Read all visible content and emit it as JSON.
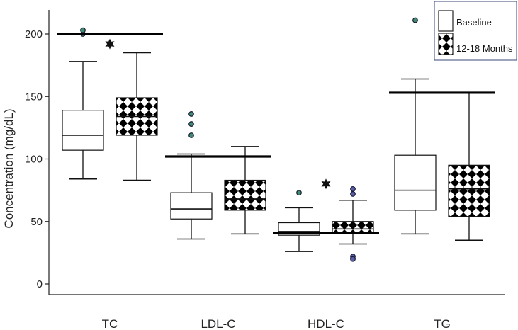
{
  "chart_data": {
    "type": "box",
    "title": "",
    "xlabel": "",
    "ylabel": "Concentration (mg/dL)",
    "ylim": [
      -5,
      220
    ],
    "yticks": [
      0,
      50,
      100,
      150,
      200
    ],
    "categories": [
      "TC",
      "LDL-C",
      "HDL-C",
      "TG"
    ],
    "legend": {
      "position": "top-right",
      "entries": [
        {
          "label": "Baseline",
          "pattern": "plain",
          "color": "#ffffff"
        },
        {
          "label": "12-18 Months",
          "pattern": "checker",
          "color": "#000000"
        }
      ]
    },
    "series": [
      {
        "name": "Baseline",
        "boxes": [
          {
            "category": "TC",
            "whisker_low": 84,
            "q1": 107,
            "median": 119,
            "q3": 139,
            "whisker_high": 178,
            "outliers": [
              200,
              203
            ]
          },
          {
            "category": "LDL-C",
            "whisker_low": 36,
            "q1": 52,
            "median": 60,
            "q3": 73,
            "whisker_high": 104,
            "outliers": [
              119,
              128,
              136
            ]
          },
          {
            "category": "HDL-C",
            "whisker_low": 26,
            "q1": 39,
            "median": 42,
            "q3": 49,
            "whisker_high": 61,
            "outliers": [
              73
            ]
          },
          {
            "category": "TG",
            "whisker_low": 40,
            "q1": 59,
            "median": 75,
            "q3": 103,
            "whisker_high": 164,
            "outliers": [
              211
            ]
          }
        ]
      },
      {
        "name": "12-18 Months",
        "boxes": [
          {
            "category": "TC",
            "whisker_low": 83,
            "q1": 119,
            "median": 134,
            "q3": 149,
            "whisker_high": 185,
            "outliers": []
          },
          {
            "category": "LDL-C",
            "whisker_low": 40,
            "q1": 59,
            "median": 68,
            "q3": 83,
            "whisker_high": 110,
            "outliers": []
          },
          {
            "category": "HDL-C",
            "whisker_low": 32,
            "q1": 40,
            "median": 44,
            "q3": 50,
            "whisker_high": 67,
            "outliers": [
              72,
              76,
              22,
              20
            ]
          },
          {
            "category": "TG",
            "whisker_low": 35,
            "q1": 54,
            "median": 76,
            "q3": 95,
            "whisker_high": 153,
            "outliers": []
          }
        ]
      }
    ],
    "reference_lines": [
      {
        "category": "TC",
        "value": 200
      },
      {
        "category": "LDL-C",
        "value": 102
      },
      {
        "category": "HDL-C",
        "value": 41
      },
      {
        "category": "TG",
        "value": 153
      }
    ],
    "significance_markers": [
      {
        "category": "TC",
        "value": 192,
        "symbol": "star"
      },
      {
        "category": "HDL-C",
        "value": 80,
        "symbol": "star"
      }
    ],
    "colors": {
      "outlier_baseline": "#3f8f6f",
      "outlier_followup": "#5a5fa8",
      "outlier_edge": "#1a1a3a",
      "axis": "#222222",
      "reference": "#000000"
    }
  }
}
